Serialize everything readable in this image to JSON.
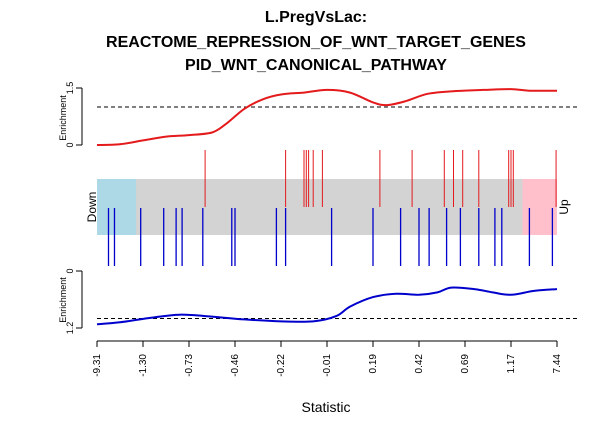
{
  "chart_data": {
    "type": "barcode-enrichment",
    "title_lines": [
      "L.PregVsLac:",
      "REACTOME_REPRESSION_OF_WNT_TARGET_GENES",
      "PID_WNT_CANONICAL_PATHWAY"
    ],
    "xlabel": "Statistic",
    "x_tick_labels": [
      "-9.31",
      "-1.30",
      "-0.73",
      "-0.46",
      "-0.22",
      "-0.01",
      "0.19",
      "0.42",
      "0.69",
      "1.17",
      "7.44"
    ],
    "rank_range": [
      0,
      1
    ],
    "region_labels": {
      "down": "Down",
      "up": "Up"
    },
    "colors": {
      "up_set": "#e41a1c",
      "down_set": "#0000cc",
      "background_bar": "#d3d3d3",
      "down_region": "#add8e6",
      "up_region": "#ffc0cb",
      "dashed_line": "#000000"
    },
    "region_extent": {
      "down_end": 0.085,
      "up_start": 0.925
    },
    "up_panel": {
      "ylabel": "Enrichment",
      "ytick_labels": [
        "0",
        "1.5"
      ],
      "ylim": [
        0,
        1.5
      ],
      "reference": 1.0,
      "curve": [
        [
          0.0,
          0.0
        ],
        [
          0.05,
          0.02
        ],
        [
          0.1,
          0.12
        ],
        [
          0.15,
          0.22
        ],
        [
          0.2,
          0.26
        ],
        [
          0.25,
          0.33
        ],
        [
          0.28,
          0.55
        ],
        [
          0.32,
          0.95
        ],
        [
          0.36,
          1.2
        ],
        [
          0.4,
          1.33
        ],
        [
          0.45,
          1.38
        ],
        [
          0.5,
          1.45
        ],
        [
          0.55,
          1.38
        ],
        [
          0.6,
          1.12
        ],
        [
          0.63,
          1.05
        ],
        [
          0.67,
          1.15
        ],
        [
          0.72,
          1.35
        ],
        [
          0.78,
          1.42
        ],
        [
          0.84,
          1.45
        ],
        [
          0.9,
          1.47
        ],
        [
          0.94,
          1.43
        ],
        [
          1.0,
          1.43
        ]
      ],
      "positions": [
        0.235,
        0.41,
        0.45,
        0.455,
        0.46,
        0.47,
        0.49,
        0.615,
        0.685,
        0.755,
        0.775,
        0.795,
        0.83,
        0.895,
        0.9,
        0.905,
        0.998
      ]
    },
    "down_panel": {
      "ylabel": "Enrichment",
      "ytick_labels": [
        "0",
        "1.2"
      ],
      "ylim": [
        0,
        1.2
      ],
      "reference": 1.0,
      "curve": [
        [
          0.0,
          1.12
        ],
        [
          0.05,
          1.08
        ],
        [
          0.12,
          0.98
        ],
        [
          0.18,
          0.92
        ],
        [
          0.25,
          0.96
        ],
        [
          0.32,
          1.02
        ],
        [
          0.4,
          1.06
        ],
        [
          0.47,
          1.06
        ],
        [
          0.52,
          0.95
        ],
        [
          0.55,
          0.75
        ],
        [
          0.6,
          0.55
        ],
        [
          0.65,
          0.48
        ],
        [
          0.7,
          0.5
        ],
        [
          0.74,
          0.45
        ],
        [
          0.77,
          0.35
        ],
        [
          0.82,
          0.38
        ],
        [
          0.86,
          0.45
        ],
        [
          0.9,
          0.5
        ],
        [
          0.95,
          0.42
        ],
        [
          1.0,
          0.38
        ]
      ],
      "positions": [
        0.025,
        0.038,
        0.095,
        0.145,
        0.172,
        0.185,
        0.23,
        0.293,
        0.3,
        0.39,
        0.41,
        0.51,
        0.6,
        0.66,
        0.7,
        0.722,
        0.76,
        0.79,
        0.83,
        0.865,
        0.88,
        0.94,
        0.99
      ]
    }
  }
}
